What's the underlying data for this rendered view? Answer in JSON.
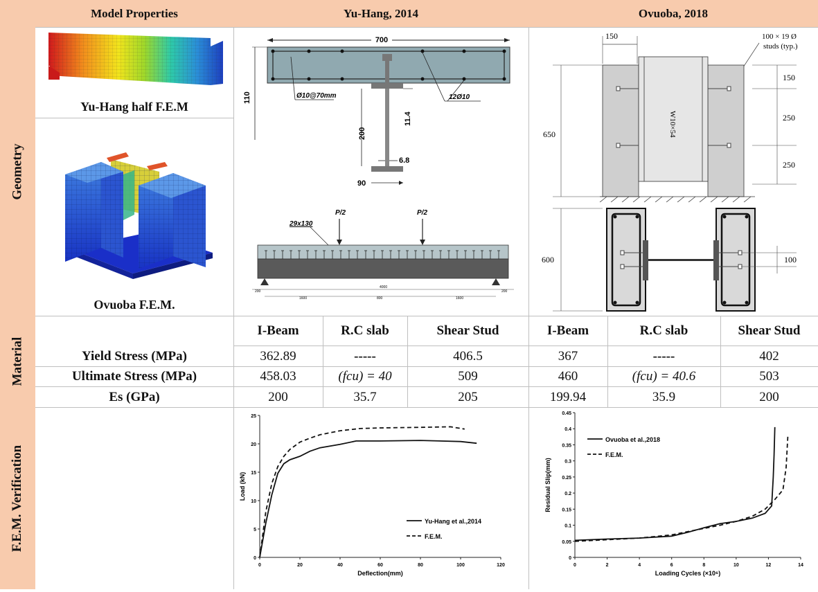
{
  "header": {
    "col1": "Model Properties",
    "col2": "Yu-Hang, 2014",
    "col3": "Ovuoba, 2018"
  },
  "side_labels": {
    "geometry": "Geometry",
    "material": "Material",
    "verification": "F.E.M. Verification"
  },
  "geometry": {
    "yuhang_caption": "Yu-Hang half F.E.M",
    "ovuoba_caption": "Ovuoba F.E.M.",
    "yuhang_section": {
      "width": "700",
      "slab_depth": "110",
      "web_height": "200",
      "flange_thk": "11.4",
      "web_thk": "6.8",
      "flange_width": "90",
      "rebar_left": "Ø10@70mm",
      "rebar_right": "12Ø10"
    },
    "yuhang_elevation": {
      "studs": "29x130",
      "load_left": "P/2",
      "load_right": "P/2",
      "dims_top": [
        "200",
        "4000",
        "200"
      ],
      "dims_bottom": [
        "1600",
        "800",
        "1600"
      ]
    },
    "ovuoba_top": {
      "width": "150",
      "studs_note_1": "100 × 19 Ø",
      "studs_note_2": "studs (typ.)",
      "height": "650",
      "beam": "W10×54",
      "spacing_1": "150",
      "spacing_2": "250",
      "spacing_3": "250"
    },
    "ovuoba_bottom": {
      "height": "600",
      "spacing": "100"
    }
  },
  "material": {
    "column_headers": [
      "I-Beam",
      "R.C slab",
      "Shear Stud",
      "I-Beam",
      "R.C slab",
      "Shear Stud"
    ],
    "rows": [
      {
        "label": "Yield Stress (MPa)",
        "values": [
          "362.89",
          "-----",
          "406.5",
          "367",
          "-----",
          "402"
        ]
      },
      {
        "label": "Ultimate Stress (MPa)",
        "values": [
          "458.03",
          "(fcu) = 40",
          "509",
          "460",
          "(fcu) = 40.6",
          "503"
        ]
      },
      {
        "label": "Es (GPa)",
        "values": [
          "200",
          "35.7",
          "205",
          "199.94",
          "35.9",
          "200"
        ]
      }
    ]
  },
  "chart_data": [
    {
      "type": "line",
      "xlabel": "Deflection(mm)",
      "ylabel": "Load (kN)",
      "xlim": [
        0,
        120
      ],
      "ylim": [
        0,
        25
      ],
      "xticks": [
        0,
        20,
        40,
        60,
        80,
        100,
        120
      ],
      "yticks": [
        0,
        5,
        10,
        15,
        20,
        25
      ],
      "legend_position": "bottom-right",
      "series": [
        {
          "name": "Yu-Hang et al.,2014",
          "style": "solid",
          "x": [
            0,
            3,
            6,
            9,
            12,
            15,
            20,
            25,
            30,
            40,
            48,
            60,
            80,
            100,
            108
          ],
          "y": [
            0,
            6,
            11,
            14.8,
            16.5,
            17.2,
            17.8,
            18.7,
            19.3,
            19.9,
            20.5,
            20.5,
            20.6,
            20.4,
            20.1
          ]
        },
        {
          "name": "F.E.M.",
          "style": "dashed",
          "x": [
            0,
            3,
            6,
            9,
            12,
            15,
            20,
            25,
            30,
            40,
            50,
            60,
            80,
            95,
            102
          ],
          "y": [
            0,
            8,
            13,
            16,
            17.8,
            19,
            20.3,
            21,
            21.6,
            22.3,
            22.7,
            22.8,
            22.9,
            23,
            22.6
          ]
        }
      ]
    },
    {
      "type": "line",
      "xlabel": "Loading Cycles (×10⁶)",
      "ylabel": "Residual Slip(mm)",
      "xlim": [
        0,
        14
      ],
      "ylim": [
        0,
        0.45
      ],
      "xticks": [
        0,
        2,
        4,
        6,
        8,
        10,
        12,
        14
      ],
      "yticks": [
        0,
        0.05,
        0.1,
        0.15,
        0.2,
        0.25,
        0.3,
        0.35,
        0.4,
        0.45
      ],
      "legend_position": "top-left",
      "series": [
        {
          "name": "Ovuoba et al.,2018",
          "style": "solid",
          "x": [
            0,
            2,
            4,
            6,
            7,
            8,
            9,
            10,
            11,
            11.8,
            12.2,
            12.3,
            12.35,
            12.4
          ],
          "y": [
            0.053,
            0.057,
            0.06,
            0.066,
            0.078,
            0.092,
            0.105,
            0.112,
            0.122,
            0.137,
            0.16,
            0.25,
            0.32,
            0.405
          ]
        },
        {
          "name": "F.E.M.",
          "style": "dashed",
          "x": [
            0,
            2,
            4,
            6,
            7,
            8,
            9,
            10,
            11,
            11.8,
            12.4,
            12.9,
            13.1,
            13.2
          ],
          "y": [
            0.05,
            0.055,
            0.06,
            0.07,
            0.08,
            0.09,
            0.1,
            0.112,
            0.128,
            0.15,
            0.18,
            0.21,
            0.28,
            0.375
          ]
        }
      ]
    }
  ]
}
